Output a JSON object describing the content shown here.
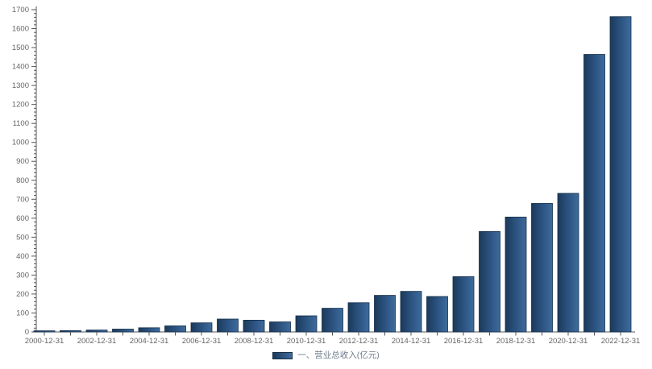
{
  "chart_data": {
    "type": "bar",
    "title": "",
    "legend": "一、营业总收入(亿元)",
    "legend_position": "bottom-center",
    "grid": false,
    "categories": [
      "2000-12-31",
      "2001-12-31",
      "2002-12-31",
      "2003-12-31",
      "2004-12-31",
      "2005-12-31",
      "2006-12-31",
      "2007-12-31",
      "2008-12-31",
      "2009-12-31",
      "2010-12-31",
      "2011-12-31",
      "2012-12-31",
      "2013-12-31",
      "2014-12-31",
      "2015-12-31",
      "2016-12-31",
      "2017-12-31",
      "2018-12-31",
      "2019-12-31",
      "2020-12-31",
      "2021-12-31",
      "2022-12-31"
    ],
    "values": [
      6,
      7,
      10,
      15,
      22,
      32,
      48,
      68,
      62,
      53,
      85,
      125,
      154,
      193,
      214,
      187,
      292,
      530,
      606,
      678,
      731,
      1464,
      1663
    ],
    "x_tick_labels_shown": [
      "2000-12-31",
      "2002-12-31",
      "2004-12-31",
      "2006-12-31",
      "2008-12-31",
      "2010-12-31",
      "2012-12-31",
      "2014-12-31",
      "2016-12-31",
      "2018-12-31",
      "2020-12-31",
      "2022-12-31"
    ],
    "x_label_every": 2,
    "xlabel": "",
    "ylabel": "",
    "ylim": [
      0,
      1700
    ],
    "y_major_step": 100,
    "y_minor_step": 20,
    "y_tick_labels": [
      "0",
      "100",
      "200",
      "300",
      "400",
      "500",
      "600",
      "700",
      "800",
      "900",
      "1000",
      "1100",
      "1200",
      "1300",
      "1400",
      "1500",
      "1600",
      "1700"
    ],
    "colors": {
      "bar_gradient_start": "#1b3a5a",
      "bar_gradient_mid": "#2d5584",
      "bar_gradient_end": "#3e6c9c",
      "bar_border": "#162e49",
      "axis_line": "#555555",
      "tick_label": "#666666",
      "legend_text": "#6e7b8a",
      "background": "#ffffff"
    }
  }
}
